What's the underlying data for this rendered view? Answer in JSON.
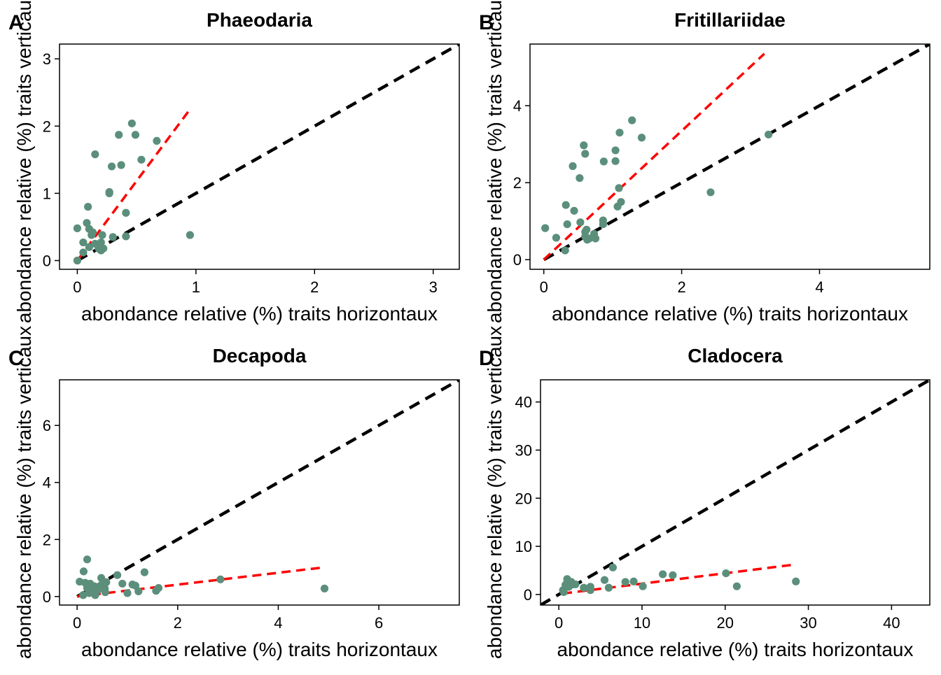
{
  "colors": {
    "points": "#5b8f7b",
    "identity_line": "#000000",
    "fit_line": "#ff0000"
  },
  "chart_data": [
    {
      "type": "scatter",
      "tag": "A",
      "title": "Phaeodaria",
      "xlabel": "abondance relative (%) traits horizontaux",
      "ylabel": "abondance relative (%) traits verticaux",
      "xlim": [
        -0.15,
        3.22
      ],
      "ylim": [
        -0.13,
        3.22
      ],
      "xticks": [
        0,
        1,
        2,
        3
      ],
      "yticks": [
        0,
        1,
        2,
        3
      ],
      "identity_line": {
        "x": [
          0,
          3.22
        ],
        "y": [
          0,
          3.22
        ]
      },
      "fit_line": {
        "x": [
          0,
          0.95
        ],
        "y": [
          0,
          2.25
        ]
      },
      "points": [
        [
          0.0,
          0.0
        ],
        [
          0.0,
          0.48
        ],
        [
          0.05,
          0.12
        ],
        [
          0.05,
          0.27
        ],
        [
          0.08,
          0.56
        ],
        [
          0.1,
          0.2
        ],
        [
          0.09,
          0.8
        ],
        [
          0.1,
          0.47
        ],
        [
          0.13,
          0.42
        ],
        [
          0.12,
          0.38
        ],
        [
          0.15,
          1.58
        ],
        [
          0.15,
          0.25
        ],
        [
          0.18,
          0.18
        ],
        [
          0.2,
          0.15
        ],
        [
          0.2,
          0.27
        ],
        [
          0.22,
          0.18
        ],
        [
          0.21,
          0.38
        ],
        [
          0.27,
          1.0
        ],
        [
          0.27,
          1.02
        ],
        [
          0.29,
          1.4
        ],
        [
          0.3,
          0.35
        ],
        [
          0.35,
          1.87
        ],
        [
          0.37,
          1.42
        ],
        [
          0.41,
          0.71
        ],
        [
          0.41,
          0.36
        ],
        [
          0.46,
          2.04
        ],
        [
          0.49,
          1.87
        ],
        [
          0.54,
          1.5
        ],
        [
          0.67,
          1.78
        ],
        [
          0.95,
          0.38
        ]
      ]
    },
    {
      "type": "scatter",
      "tag": "B",
      "title": "Fritillariidae",
      "xlabel": "abondance relative (%) traits horizontaux",
      "ylabel": "abondance relative (%) traits verticaux",
      "xlim": [
        -0.2,
        5.6
      ],
      "ylim": [
        -0.25,
        5.6
      ],
      "xticks": [
        0,
        2,
        4
      ],
      "yticks": [
        0,
        2,
        4
      ],
      "identity_line": {
        "x": [
          0,
          5.6
        ],
        "y": [
          0,
          5.6
        ]
      },
      "fit_line": {
        "x": [
          0,
          3.2
        ],
        "y": [
          0,
          5.35
        ]
      },
      "points": [
        [
          0.02,
          0.82
        ],
        [
          0.18,
          0.57
        ],
        [
          0.31,
          0.24
        ],
        [
          0.32,
          1.42
        ],
        [
          0.34,
          0.92
        ],
        [
          0.42,
          2.43
        ],
        [
          0.44,
          1.27
        ],
        [
          0.52,
          2.12
        ],
        [
          0.53,
          0.97
        ],
        [
          0.58,
          2.97
        ],
        [
          0.6,
          2.75
        ],
        [
          0.6,
          0.72
        ],
        [
          0.6,
          0.6
        ],
        [
          0.62,
          0.78
        ],
        [
          0.63,
          0.52
        ],
        [
          0.66,
          0.55
        ],
        [
          0.73,
          0.67
        ],
        [
          0.75,
          0.55
        ],
        [
          0.86,
          1.02
        ],
        [
          0.87,
          2.55
        ],
        [
          0.86,
          0.92
        ],
        [
          1.04,
          2.56
        ],
        [
          1.04,
          2.84
        ],
        [
          1.07,
          1.38
        ],
        [
          1.09,
          1.86
        ],
        [
          1.1,
          3.3
        ],
        [
          1.12,
          1.5
        ],
        [
          1.28,
          3.62
        ],
        [
          1.42,
          3.17
        ],
        [
          2.42,
          1.75
        ],
        [
          3.26,
          3.25
        ]
      ]
    },
    {
      "type": "scatter",
      "tag": "C",
      "title": "Decapoda",
      "xlabel": "abondance relative (%) traits horizontaux",
      "ylabel": "abondance relative (%) traits verticaux",
      "xlim": [
        -0.35,
        7.6
      ],
      "ylim": [
        -0.3,
        7.6
      ],
      "xticks": [
        0,
        2,
        4,
        6
      ],
      "yticks": [
        0,
        2,
        4,
        6
      ],
      "identity_line": {
        "x": [
          0,
          7.6
        ],
        "y": [
          0,
          7.6
        ]
      },
      "fit_line": {
        "x": [
          0,
          4.9
        ],
        "y": [
          0,
          1.02
        ]
      },
      "points": [
        [
          0.05,
          0.52
        ],
        [
          0.12,
          0.05
        ],
        [
          0.13,
          0.88
        ],
        [
          0.16,
          0.48
        ],
        [
          0.2,
          1.3
        ],
        [
          0.2,
          0.3
        ],
        [
          0.24,
          0.12
        ],
        [
          0.26,
          0.45
        ],
        [
          0.3,
          0.22
        ],
        [
          0.34,
          0.36
        ],
        [
          0.36,
          0.05
        ],
        [
          0.41,
          0.22
        ],
        [
          0.45,
          0.35
        ],
        [
          0.48,
          0.65
        ],
        [
          0.5,
          0.44
        ],
        [
          0.55,
          0.28
        ],
        [
          0.56,
          0.15
        ],
        [
          0.58,
          0.5
        ],
        [
          0.8,
          0.75
        ],
        [
          0.9,
          0.45
        ],
        [
          1.0,
          0.12
        ],
        [
          1.1,
          0.42
        ],
        [
          1.16,
          0.38
        ],
        [
          1.22,
          0.18
        ],
        [
          1.34,
          0.85
        ],
        [
          1.57,
          0.2
        ],
        [
          1.62,
          0.3
        ],
        [
          2.85,
          0.6
        ],
        [
          4.92,
          0.28
        ]
      ]
    },
    {
      "type": "scatter",
      "tag": "D",
      "title": "Cladocera",
      "xlabel": "abondance relative (%) traits horizontaux",
      "ylabel": "abondance relative (%) traits verticaux",
      "xlim": [
        -2.2,
        44.6
      ],
      "ylim": [
        -2.2,
        44.6
      ],
      "xticks": [
        0,
        10,
        20,
        30,
        40
      ],
      "yticks": [
        0,
        10,
        20,
        30,
        40
      ],
      "identity_line": {
        "x": [
          -2.2,
          44.6
        ],
        "y": [
          -2.2,
          44.6
        ]
      },
      "fit_line": {
        "x": [
          0.5,
          28.3
        ],
        "y": [
          0.2,
          6.2
        ]
      },
      "points": [
        [
          0.5,
          0.9
        ],
        [
          0.6,
          0.5
        ],
        [
          0.8,
          2.0
        ],
        [
          1.0,
          3.2
        ],
        [
          1.2,
          1.6
        ],
        [
          1.5,
          2.6
        ],
        [
          2.0,
          2.1
        ],
        [
          3.0,
          1.4
        ],
        [
          3.8,
          0.9
        ],
        [
          3.8,
          1.6
        ],
        [
          5.5,
          3.0
        ],
        [
          6.0,
          1.4
        ],
        [
          6.5,
          5.6
        ],
        [
          8.0,
          2.6
        ],
        [
          9.0,
          2.7
        ],
        [
          10.1,
          1.7
        ],
        [
          12.5,
          4.2
        ],
        [
          13.7,
          4.0
        ],
        [
          20.1,
          4.4
        ],
        [
          21.4,
          1.7
        ],
        [
          28.5,
          2.7
        ]
      ]
    }
  ]
}
